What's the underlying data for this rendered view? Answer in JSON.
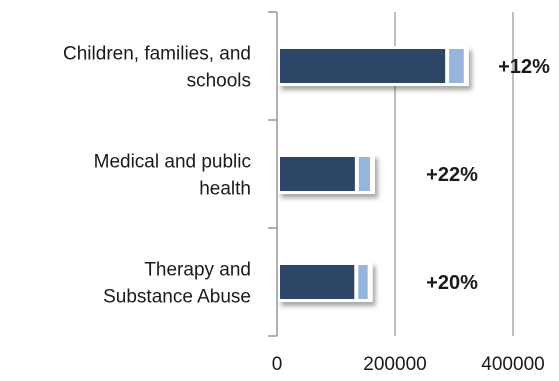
{
  "chart_data": {
    "type": "bar",
    "orientation": "horizontal",
    "stacked": true,
    "categories": [
      [
        "Children, families, and",
        "schools"
      ],
      [
        "Medical and public",
        "health"
      ],
      [
        "Therapy and",
        "Substance Abuse"
      ]
    ],
    "series": [
      {
        "values": [
          285000,
          132000,
          131000
        ],
        "color": "#2d4566"
      },
      {
        "values": [
          35000,
          29000,
          26000
        ],
        "color": "#95b5dc"
      }
    ],
    "annotations": [
      "+12%",
      "+22%",
      "+20%"
    ],
    "xticks": [
      "0",
      "200000",
      "400000"
    ],
    "xlim": [
      0,
      400000
    ],
    "grid": true,
    "title": "",
    "xlabel": "",
    "ylabel": ""
  }
}
